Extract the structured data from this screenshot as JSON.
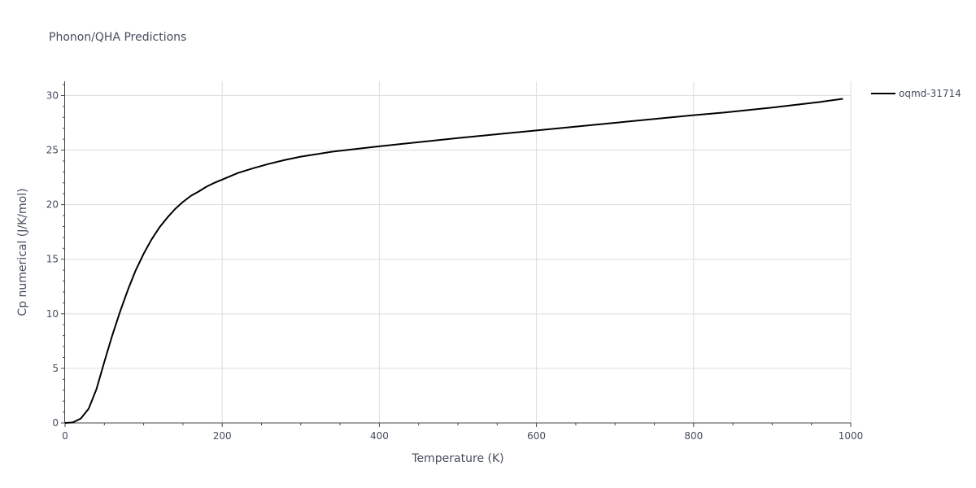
{
  "chart_data": {
    "type": "line",
    "title": "Phonon/QHA Predictions",
    "xlabel": "Temperature (K)",
    "ylabel": "Cp numerical (J/K/mol)",
    "xlim": [
      0,
      1000
    ],
    "ylim": [
      0,
      31.3
    ],
    "x_ticks": [
      "0",
      "200",
      "400",
      "600",
      "800",
      "1000"
    ],
    "x_tick_values": [
      0,
      200,
      400,
      600,
      800,
      1000
    ],
    "y_ticks": [
      "0",
      "5",
      "10",
      "15",
      "20",
      "25",
      "30"
    ],
    "y_tick_values": [
      0,
      5,
      10,
      15,
      20,
      25,
      30
    ],
    "grid": true,
    "legend_position": "top-right",
    "series": [
      {
        "name": "oqmd-31714",
        "color": "#000000",
        "x": [
          0,
          10,
          20,
          30,
          40,
          50,
          60,
          70,
          80,
          90,
          100,
          110,
          120,
          130,
          140,
          150,
          160,
          170,
          180,
          190,
          200,
          220,
          240,
          260,
          280,
          300,
          340,
          400,
          500,
          600,
          700,
          800,
          840,
          900,
          960,
          990
        ],
        "y": [
          0,
          0.05,
          0.4,
          1.3,
          3.1,
          5.6,
          8.0,
          10.2,
          12.2,
          14.0,
          15.5,
          16.8,
          17.9,
          18.8,
          19.6,
          20.25,
          20.8,
          21.2,
          21.65,
          22.0,
          22.3,
          22.9,
          23.35,
          23.75,
          24.1,
          24.4,
          24.85,
          25.35,
          26.1,
          26.8,
          27.5,
          28.2,
          28.45,
          28.9,
          29.4,
          29.7
        ]
      }
    ]
  }
}
